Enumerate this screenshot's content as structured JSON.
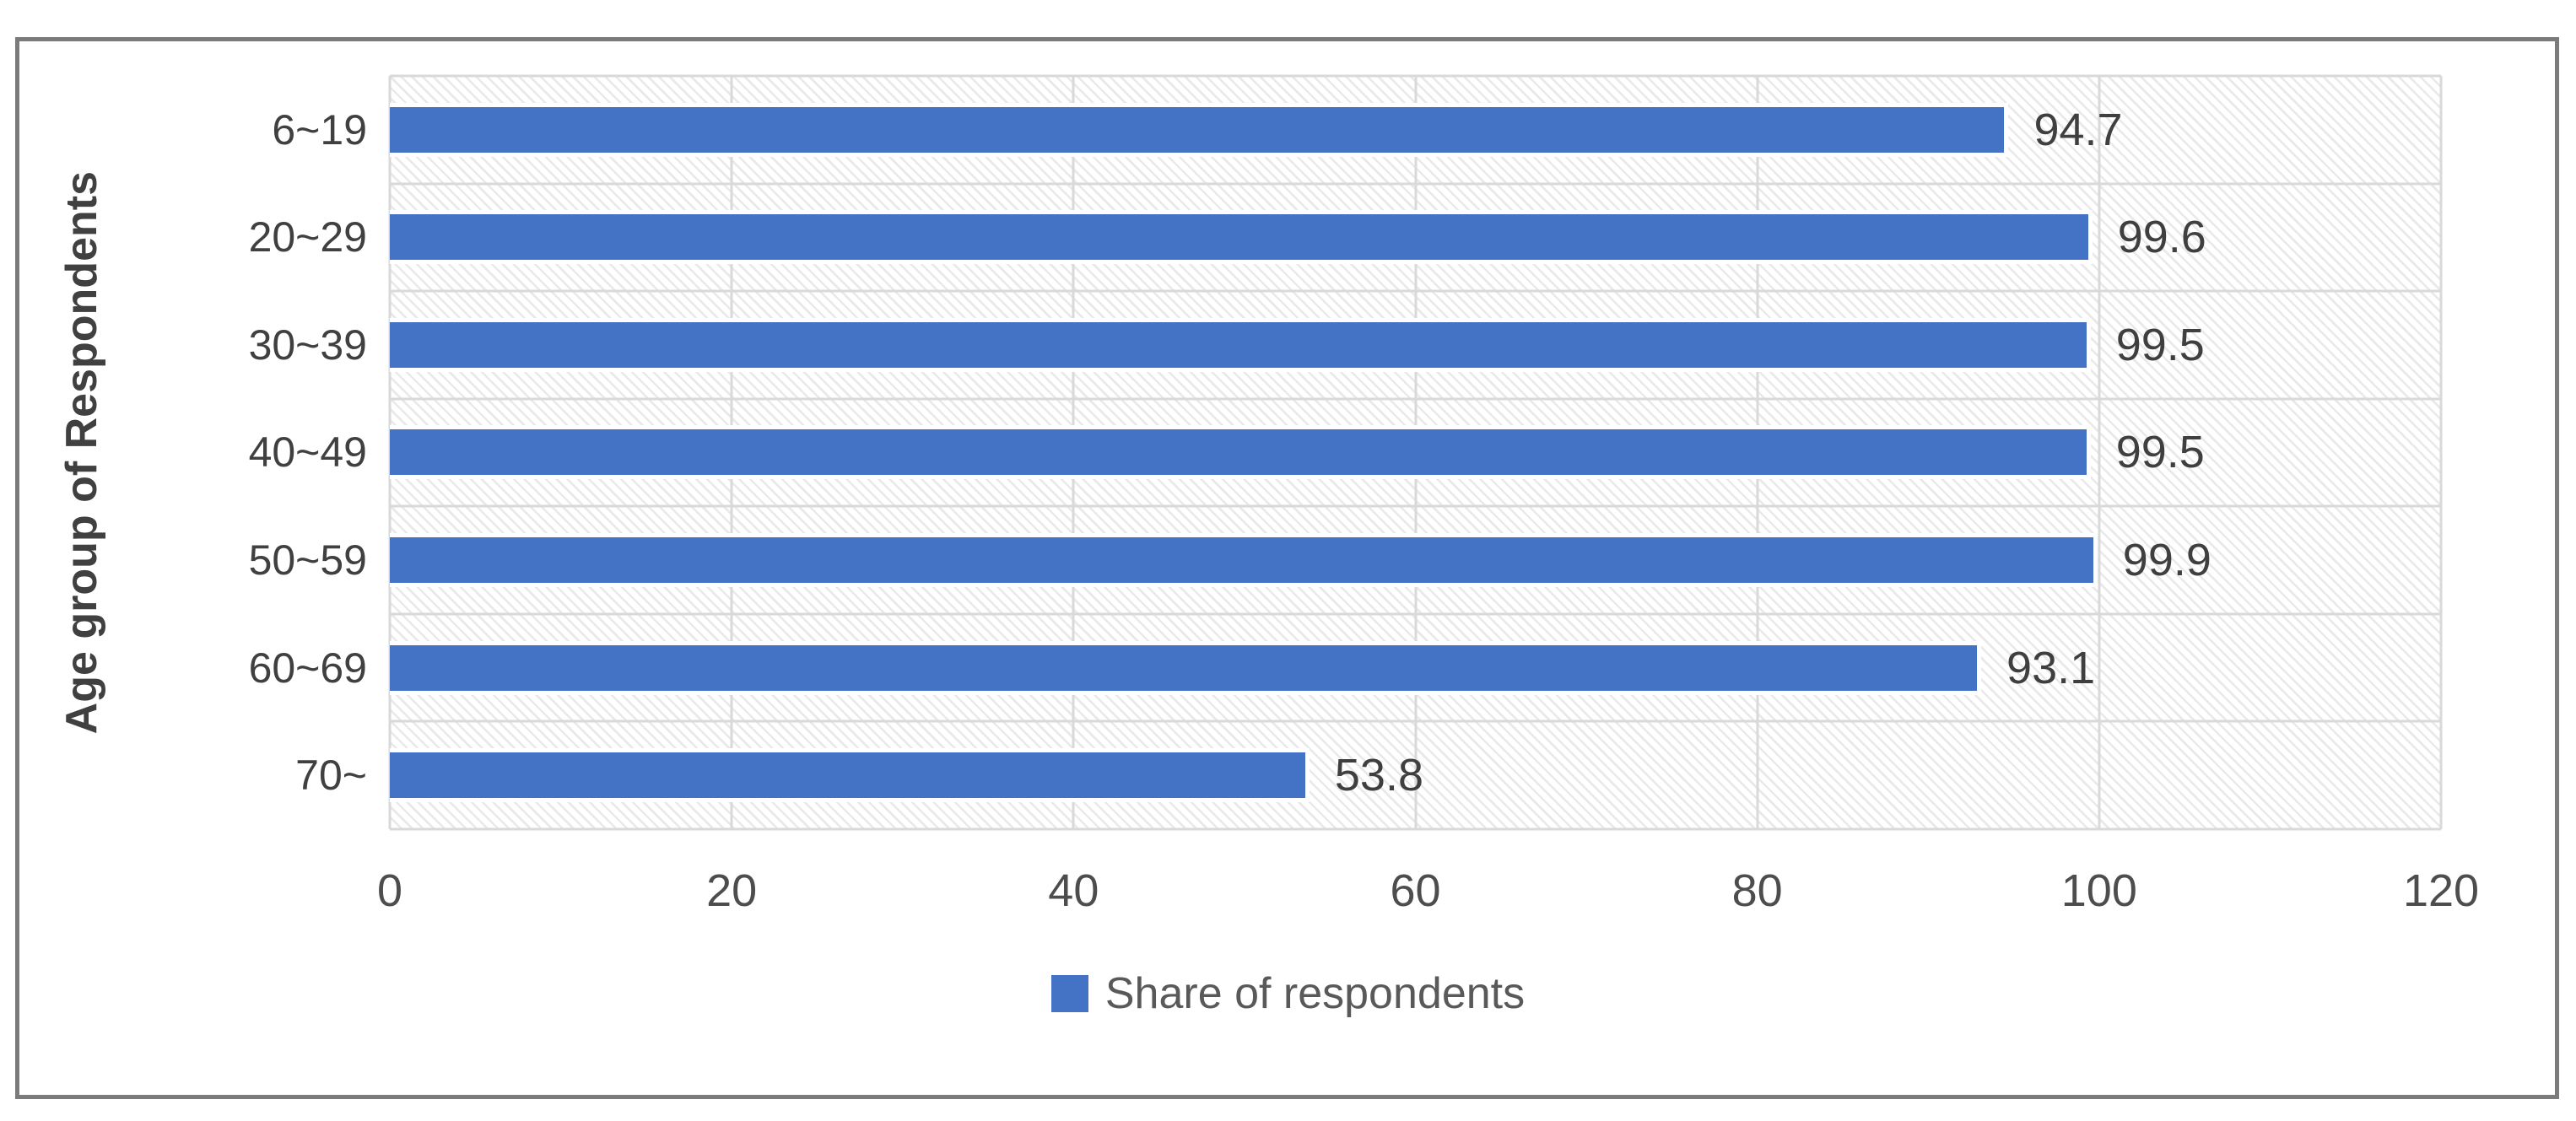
{
  "chart_data": {
    "type": "bar",
    "orientation": "horizontal",
    "title": "",
    "xlabel": "",
    "ylabel": "Age group of Respondents",
    "categories": [
      "6~19",
      "20~29",
      "30~39",
      "40~49",
      "50~59",
      "60~69",
      "70~"
    ],
    "values": [
      94.7,
      99.6,
      99.5,
      99.5,
      99.9,
      93.1,
      53.8
    ],
    "value_labels": [
      "94.7",
      "99.6",
      "99.5",
      "99.5",
      "99.9",
      "93.1",
      "53.8"
    ],
    "xlim": [
      0,
      120
    ],
    "xticks": [
      0,
      20,
      40,
      60,
      80,
      100,
      120
    ],
    "legend": "Share of respondents",
    "legend_position": "bottom-center",
    "grid": true,
    "data_labels": true,
    "plot_background": "diagonal-hatch"
  },
  "colors": {
    "bar": "#4472C4",
    "legend_swatch": "#4472C4",
    "gridline": "#D9D9D9",
    "hatch_stripe": "#E9E9E9",
    "tick_text": "#4D4D4D",
    "value_text": "#3F3F3F",
    "category_text": "#404040",
    "ytitle_text": "#404040",
    "legend_text": "#595959",
    "frame_border": "#7B7B7B"
  }
}
